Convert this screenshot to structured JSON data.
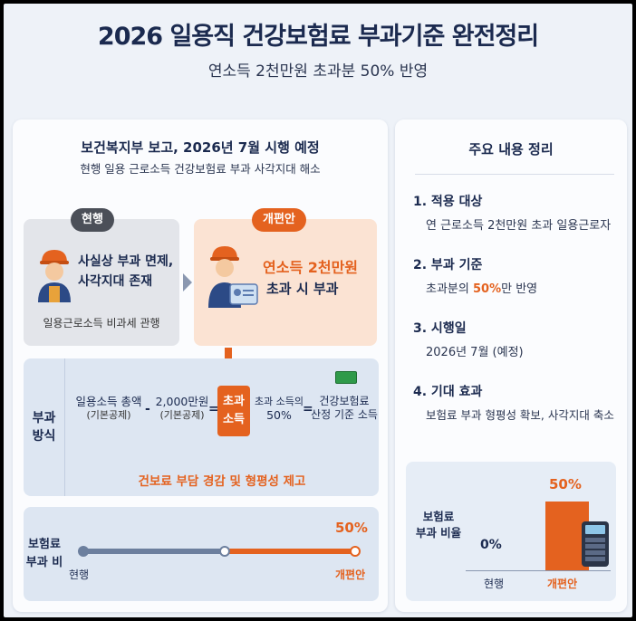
{
  "header": {
    "title": "2026 일용직 건강보험료 부과기준 완전정리",
    "subtitle": "연소득 2천만원 초과분 50% 반영"
  },
  "left": {
    "heading": "보건복지부 보고, 2026년 7월 시행 예정",
    "subheading": "현행 일용 근로소득 건강보험료 부과 사각지대 해소",
    "current": {
      "pill": "현행",
      "line1": "사실상 부과 면제,",
      "line2": "사각지대 존재",
      "footer": "일용근로소득 비과세 관행"
    },
    "reform": {
      "pill": "개편안",
      "line1": "연소득 2천만원",
      "line2": "초과 시 부과"
    },
    "method": {
      "label_line1": "부과",
      "label_line2": "방식",
      "term1": "일용소득 총액",
      "term1_note": "(기본공제)",
      "minus": "-",
      "term2": "2,000만원",
      "term2_note": "(기본공제)",
      "equals1": "=",
      "chip_line1": "초과",
      "chip_line2": "소득",
      "term3_line1": "초과 소득의",
      "term3_line2": "50%",
      "equals2": "=",
      "term4_line1": "건강보험료",
      "term4_line2": "산정 기준 소득",
      "footer": "건보료 부담 경감 및 형평성 제고"
    },
    "ratio": {
      "label_line1": "보험료",
      "label_line2": "부과 비",
      "value": "50%",
      "start_label": "현행",
      "end_label": "개편안",
      "level": 0.5
    }
  },
  "right": {
    "heading": "주요 내용 정리",
    "items": [
      {
        "head": "1. 적용 대상",
        "desc": "연 근로소득 2천만원 초과 일용근로자"
      },
      {
        "head": "2. 부과 기준",
        "desc_pre": "초과분의 ",
        "desc_hl": "50%",
        "desc_post": "만 반영"
      },
      {
        "head": "3. 시행일",
        "desc": "2026년 7월 (예정)"
      },
      {
        "head": "4. 기대 효과",
        "desc": "보험료 부과 형평성 확보, 사각지대 축소"
      }
    ],
    "chart": {
      "label_line1": "보험료",
      "label_line2": "부과 비율",
      "current_value": "0%",
      "new_value": "50%",
      "current_label": "현행",
      "new_label": "개편안"
    }
  },
  "chart_data": {
    "type": "bar",
    "categories": [
      "현행",
      "개편안"
    ],
    "values": [
      0,
      50
    ],
    "ylabel": "보험료 부과 비율"
  },
  "colors": {
    "accent": "#e4621f",
    "navy": "#1b2a4f",
    "panel_blue": "#dde6f2"
  }
}
